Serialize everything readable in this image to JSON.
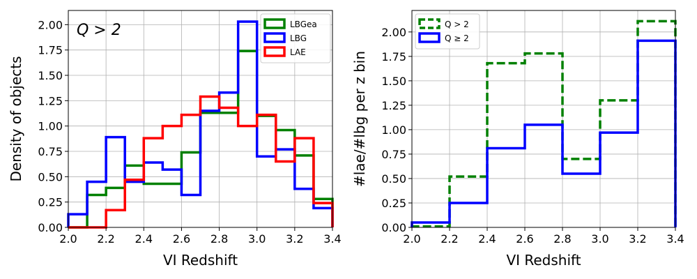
{
  "chart_data": [
    {
      "type": "step",
      "xlabel": "VI Redshift",
      "ylabel": "Density of objects",
      "xlim": [
        2.0,
        3.4
      ],
      "ylim": [
        0.0,
        2.14
      ],
      "xticks": [
        "2.0",
        "2.2",
        "2.4",
        "2.6",
        "2.8",
        "3.0",
        "3.2",
        "3.4"
      ],
      "yticks": [
        "0.00",
        "0.25",
        "0.50",
        "0.75",
        "1.00",
        "1.25",
        "1.50",
        "1.75",
        "2.00"
      ],
      "grid": true,
      "annotation": "Q > 2",
      "legend_position": "top-right",
      "bin_edges": [
        2.0,
        2.1,
        2.2,
        2.3,
        2.4,
        2.5,
        2.6,
        2.7,
        2.8,
        2.9,
        3.0,
        3.1,
        3.2,
        3.3,
        3.4
      ],
      "series": [
        {
          "name": "LBGea",
          "color": "#008000",
          "dashed": false,
          "values": [
            0.0,
            0.32,
            0.39,
            0.61,
            0.43,
            0.43,
            0.74,
            1.13,
            1.13,
            1.74,
            1.1,
            0.96,
            0.71,
            0.28
          ]
        },
        {
          "name": "LBG",
          "color": "#0000ff",
          "dashed": false,
          "values": [
            0.13,
            0.45,
            0.89,
            0.45,
            0.64,
            0.57,
            0.32,
            1.15,
            1.33,
            2.03,
            0.7,
            0.77,
            0.38,
            0.19
          ]
        },
        {
          "name": "LAE",
          "color": "#ff0000",
          "dashed": false,
          "values": [
            0.0,
            0.0,
            0.17,
            0.47,
            0.88,
            1.0,
            1.11,
            1.29,
            1.18,
            1.0,
            1.11,
            0.65,
            0.88,
            0.24
          ]
        }
      ]
    },
    {
      "type": "step",
      "xlabel": "VI Redshift",
      "ylabel": "#lae/#lbg per z bin",
      "xlim": [
        2.0,
        3.4
      ],
      "ylim": [
        0.0,
        2.22
      ],
      "xticks": [
        "2.0",
        "2.2",
        "2.4",
        "2.6",
        "2.8",
        "3.0",
        "3.2",
        "3.4"
      ],
      "yticks": [
        "0.00",
        "0.25",
        "0.50",
        "0.75",
        "1.00",
        "1.25",
        "1.50",
        "1.75",
        "2.00"
      ],
      "grid": true,
      "legend_position": "top-left",
      "bin_edges": [
        2.0,
        2.2,
        2.4,
        2.6,
        2.8,
        3.0,
        3.2,
        3.4
      ],
      "series": [
        {
          "name": "Q > 2",
          "color": "#008000",
          "dashed": true,
          "values": [
            0.01,
            0.52,
            1.68,
            1.78,
            0.7,
            1.3,
            2.11
          ]
        },
        {
          "name": "Q ≥ 2",
          "color": "#0000ff",
          "dashed": false,
          "values": [
            0.05,
            0.25,
            0.81,
            1.05,
            0.55,
            0.97,
            1.91
          ]
        }
      ]
    }
  ]
}
